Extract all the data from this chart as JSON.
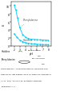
{
  "title": "",
  "xlabel": "pH",
  "ylabel": "k'",
  "ylim": [
    0,
    11
  ],
  "xlim": [
    1.5,
    8.5
  ],
  "yticks": [
    0,
    2,
    4,
    6,
    8,
    10
  ],
  "xticks": [
    2,
    3,
    4,
    5,
    6,
    7,
    8
  ],
  "phenylalanine_ph": [
    2.0,
    2.3,
    2.6,
    3.0,
    3.5,
    4.0,
    4.5,
    5.0,
    5.5,
    6.0,
    6.5,
    7.0,
    7.5,
    8.0
  ],
  "phenylalanine_k": [
    10.2,
    9.0,
    7.0,
    4.5,
    2.8,
    2.1,
    1.8,
    1.6,
    1.55,
    1.5,
    1.45,
    1.4,
    1.38,
    1.35
  ],
  "histidine_ph": [
    2.0,
    2.5,
    3.0,
    3.5,
    4.0,
    4.5,
    5.0,
    5.5,
    6.0,
    6.5,
    7.0,
    7.5,
    8.0
  ],
  "histidine_k": [
    3.0,
    2.1,
    1.4,
    1.0,
    0.75,
    0.6,
    0.5,
    0.42,
    0.35,
    0.3,
    0.28,
    0.26,
    0.24
  ],
  "line_color": "#00CCEE",
  "marker_color": "#00CCEE",
  "bg_color": "#FFFFFF",
  "phe_label_text": "Phenylalanine",
  "his_label_text": "Histidine",
  "phe_label_ph": 3.8,
  "phe_label_k": 3.5,
  "his_label_ph": 3.5,
  "his_label_k": 1.15,
  "caption_lines": [
    "Figure experiment : silica grafted stationary (Spherisorb ODS)",
    "Mobile phase: ratio methanol 80:20 v/v; mobile ion: diethylamine",
    "1 x 10⁻³mol/L ; pH adjust per Na tetrapolyphosphate",
    "Temperature: 40°C"
  ]
}
